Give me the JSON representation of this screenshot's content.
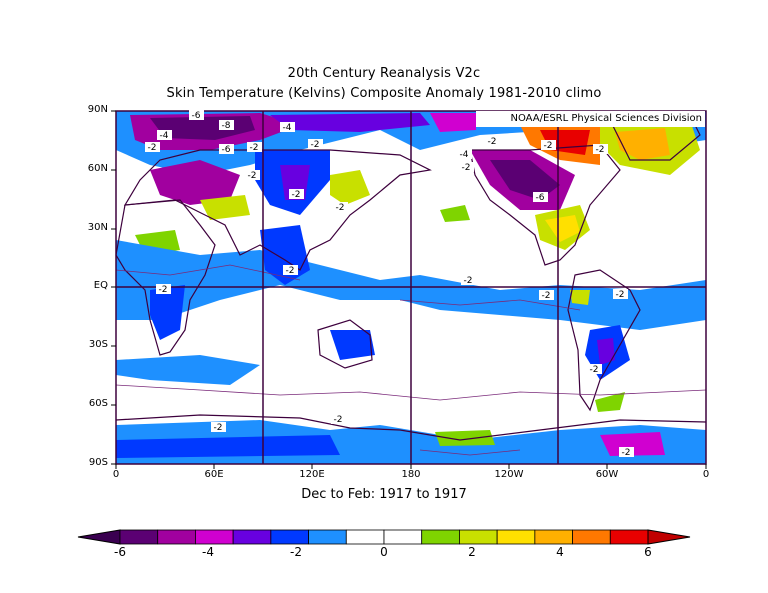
{
  "title_line1": "20th Century Reanalysis V2c",
  "title_line2": "Skin Temperature (Kelvins) Composite Anomaly 1981-2010 climo",
  "credit": "NOAA/ESRL Physical Sciences Division",
  "subtitle": "Dec to Feb: 1917 to 1917",
  "lat_labels": [
    "90N",
    "60N",
    "30N",
    "EQ",
    "30S",
    "60S",
    "90S"
  ],
  "lon_labels": [
    "0",
    "60E",
    "120E",
    "180",
    "120W",
    "60W",
    "0"
  ],
  "contour_labels": [
    "-6",
    "-8",
    "-4",
    "-4",
    "-2",
    "-6",
    "-2",
    "-2",
    "-2",
    "-2",
    "-4",
    "-2",
    "-2",
    "-6",
    "-2",
    "-2",
    "-2",
    "-2",
    "-2",
    "-2",
    "-2",
    "-2",
    "-2",
    "-2",
    "-2",
    "-2"
  ],
  "colorbar": {
    "ticks": [
      "-6",
      "-4",
      "-2",
      "0",
      "2",
      "4",
      "6"
    ],
    "colors": [
      "#5b0073",
      "#a1009f",
      "#d000d0",
      "#6800e0",
      "#0039ff",
      "#1e90ff",
      "#ffffff",
      "#ffffff",
      "#7fd400",
      "#c8e000",
      "#ffe000",
      "#ffb000",
      "#ff7800",
      "#e80000"
    ],
    "low_end_color": "#3a0050",
    "high_end_color": "#c00000"
  },
  "colors": {
    "ocean_blank": "#ffffff",
    "land_outline": "#3d003d",
    "grid": "#3d003d"
  }
}
